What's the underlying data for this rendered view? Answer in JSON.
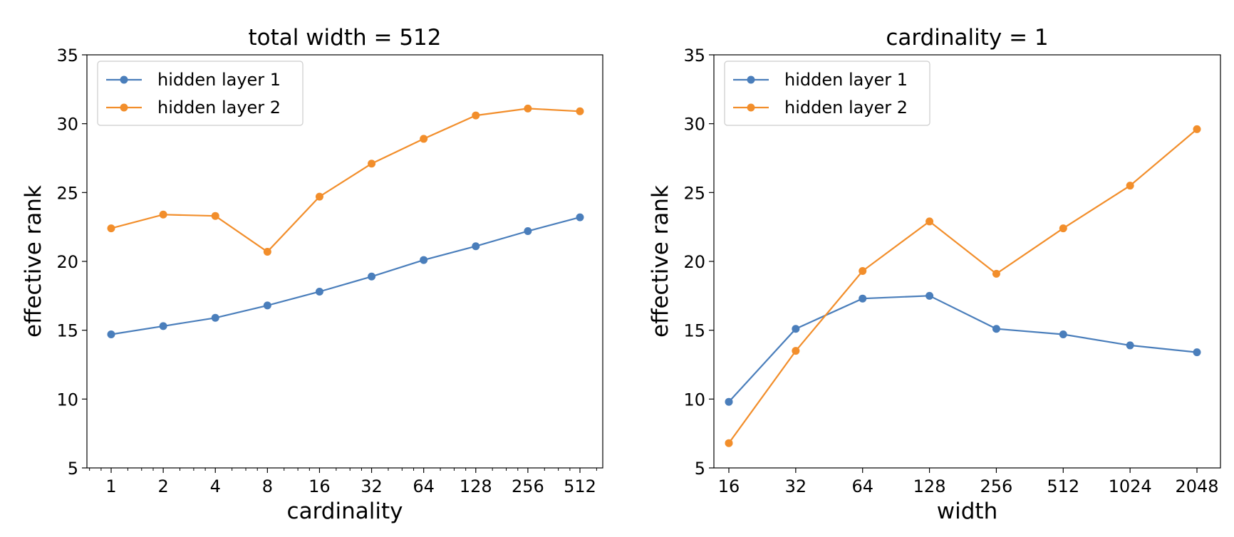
{
  "chart_data": [
    {
      "type": "line",
      "title": "total width = 512",
      "xlabel": "cardinality",
      "ylabel": "effective rank",
      "x_scale": "log2",
      "categories": [
        "1",
        "2",
        "4",
        "8",
        "16",
        "32",
        "64",
        "128",
        "256",
        "512"
      ],
      "ylim": [
        5,
        35
      ],
      "yticks": [
        5,
        10,
        15,
        20,
        25,
        30,
        35
      ],
      "legend_position": "upper-left",
      "grid": false,
      "series": [
        {
          "name": "hidden layer 1",
          "color": "#4a7ebb",
          "values": [
            14.7,
            15.3,
            15.9,
            16.8,
            17.8,
            18.9,
            20.1,
            21.1,
            22.2,
            23.2
          ]
        },
        {
          "name": "hidden layer 2",
          "color": "#f28e2b",
          "values": [
            22.4,
            23.4,
            23.3,
            20.7,
            24.7,
            27.1,
            28.9,
            30.6,
            31.1,
            30.9
          ]
        }
      ]
    },
    {
      "type": "line",
      "title": "cardinality = 1",
      "xlabel": "width",
      "ylabel": "effective rank",
      "x_scale": "log2",
      "categories": [
        "16",
        "32",
        "64",
        "128",
        "256",
        "512",
        "1024",
        "2048"
      ],
      "ylim": [
        5,
        35
      ],
      "yticks": [
        5,
        10,
        15,
        20,
        25,
        30,
        35
      ],
      "legend_position": "upper-left",
      "grid": false,
      "series": [
        {
          "name": "hidden layer 1",
          "color": "#4a7ebb",
          "values": [
            9.8,
            15.1,
            17.3,
            17.5,
            15.1,
            14.7,
            13.9,
            13.4
          ]
        },
        {
          "name": "hidden layer 2",
          "color": "#f28e2b",
          "values": [
            6.8,
            13.5,
            19.3,
            22.9,
            19.1,
            22.4,
            25.5,
            29.6
          ]
        }
      ]
    }
  ]
}
